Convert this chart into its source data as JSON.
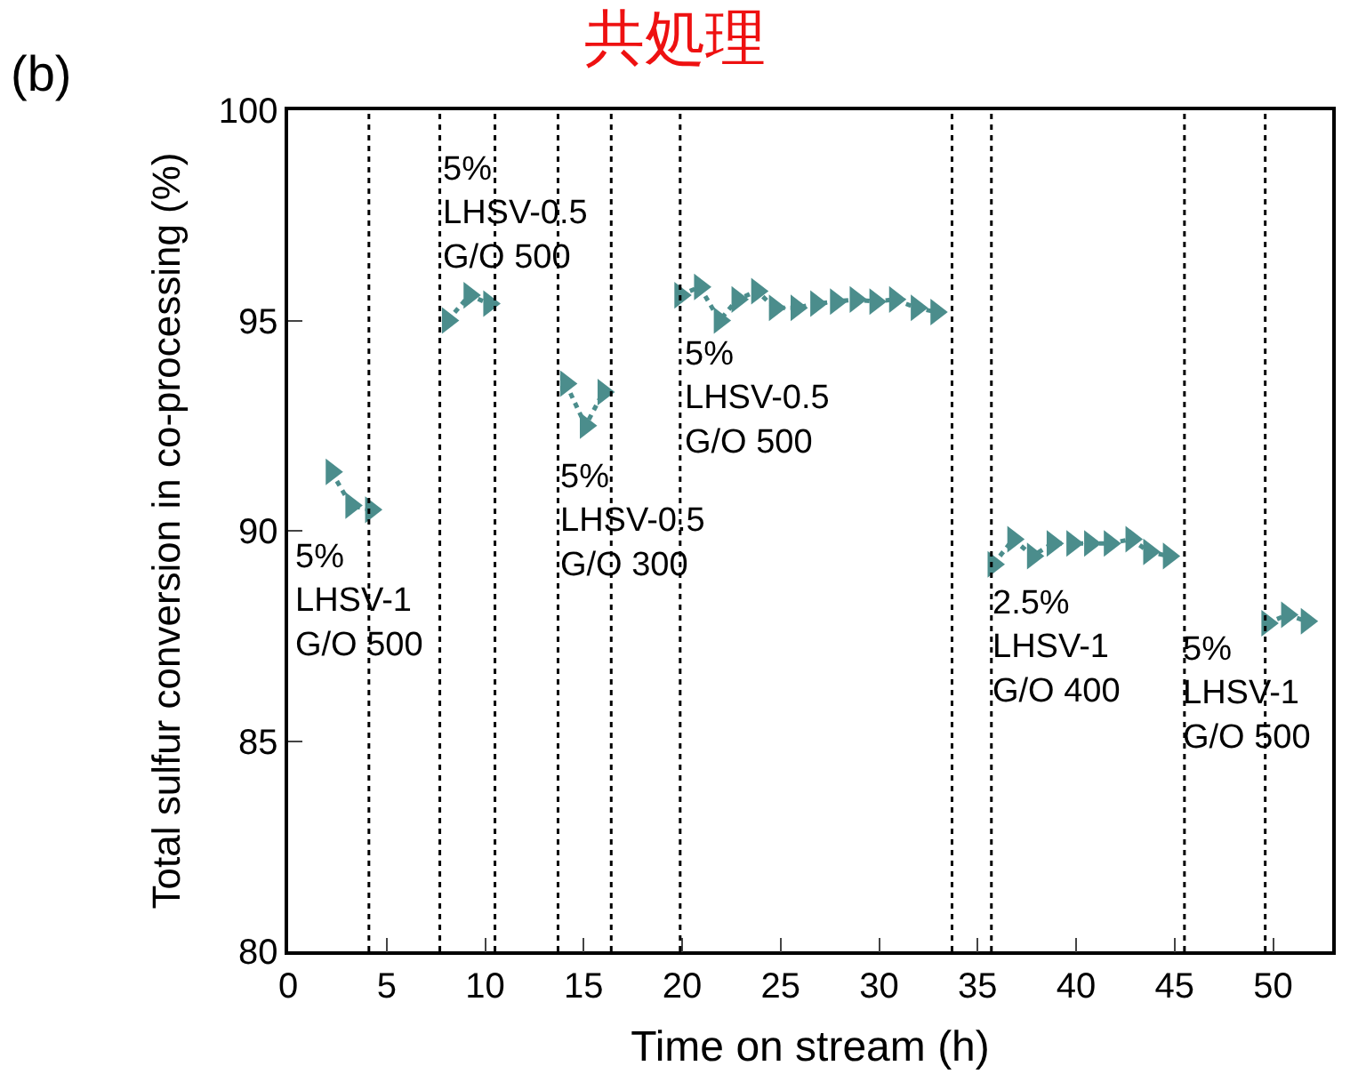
{
  "chart_data": {
    "type": "line",
    "title": "共処理",
    "xlabel": "Time on stream (h)",
    "ylabel": "Total sulfur conversion in co-processing (%)",
    "x": [
      2.2,
      3.2,
      4.2,
      null,
      8.1,
      9.2,
      10.2,
      null,
      14.1,
      15.1,
      16.0,
      null,
      19.9,
      20.9,
      21.9,
      22.8,
      23.8,
      24.7,
      25.8,
      26.8,
      27.8,
      28.8,
      29.8,
      30.8,
      31.9,
      32.9,
      null,
      35.8,
      36.8,
      37.8,
      38.8,
      39.8,
      40.7,
      41.7,
      42.8,
      43.7,
      44.7,
      null,
      49.7,
      50.7,
      51.7
    ],
    "series": [
      {
        "color": "#4b8d8c",
        "values": [
          91.4,
          90.6,
          90.5,
          null,
          95.0,
          95.6,
          95.4,
          null,
          93.5,
          92.5,
          93.3,
          null,
          95.6,
          95.8,
          95.0,
          95.5,
          95.7,
          95.3,
          95.3,
          95.4,
          95.45,
          95.5,
          95.45,
          95.5,
          95.3,
          95.2,
          null,
          89.2,
          89.8,
          89.4,
          89.7,
          89.7,
          89.7,
          89.7,
          89.8,
          89.5,
          89.4,
          null,
          87.8,
          88.0,
          87.85
        ]
      }
    ],
    "marker": "triangle",
    "line_style": "dotted",
    "xlim": [
      0,
      53
    ],
    "xticks": [
      0,
      5,
      10,
      15,
      20,
      25,
      30,
      35,
      40,
      45,
      50
    ],
    "ylim": [
      80,
      100
    ],
    "yticks": [
      80,
      85,
      90,
      95,
      100
    ],
    "ref_lines": [
      {
        "axis": "x",
        "value": 4.1,
        "color": "#000000",
        "line_style": "dotted"
      },
      {
        "axis": "x",
        "value": 7.7,
        "color": "#000000",
        "line_style": "dotted"
      },
      {
        "axis": "x",
        "value": 10.5,
        "color": "#000000",
        "line_style": "dotted"
      },
      {
        "axis": "x",
        "value": 13.7,
        "color": "#000000",
        "line_style": "dotted"
      },
      {
        "axis": "x",
        "value": 16.4,
        "color": "#000000",
        "line_style": "dotted"
      },
      {
        "axis": "x",
        "value": 19.9,
        "color": "#000000",
        "line_style": "dotted"
      },
      {
        "axis": "x",
        "value": 33.7,
        "color": "#000000",
        "line_style": "dotted"
      },
      {
        "axis": "x",
        "value": 35.7,
        "color": "#000000",
        "line_style": "dotted"
      },
      {
        "axis": "x",
        "value": 45.5,
        "color": "#000000",
        "line_style": "dotted"
      },
      {
        "axis": "x",
        "value": 49.6,
        "color": "#000000",
        "line_style": "dotted"
      }
    ],
    "annotations": [
      "(b)",
      "5%\nLHSV-1\nG/O 500",
      "5%\nLHSV-0.5\nG/O 500",
      "5%\nLHSV-0.5\nG/O 300",
      "5%\nLHSV-0.5\nG/O 500",
      "2.5%\nLHSV-1\nG/O 400",
      "5%\nLHSV-1\nG/O 500"
    ]
  }
}
